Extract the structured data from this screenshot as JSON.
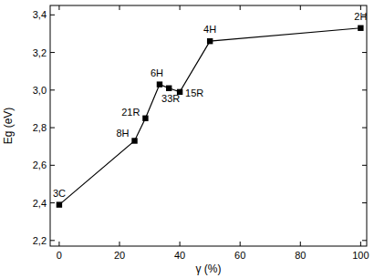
{
  "chart_data": {
    "type": "line",
    "x_label": "γ (%)",
    "y_label": "Eg (eV)",
    "x": [
      0,
      25,
      28.6,
      33.3,
      36.4,
      40,
      50,
      100
    ],
    "values": [
      2.39,
      2.73,
      2.85,
      3.03,
      3.01,
      2.99,
      3.26,
      3.33
    ],
    "point_labels": [
      "3C",
      "8H",
      "21R",
      "6H",
      "33R",
      "15R",
      "4H",
      "2H"
    ],
    "color": "#000000",
    "marker": "square",
    "line_style": "solid",
    "grid": false,
    "xlim": [
      -3,
      102
    ],
    "xticks": [
      0,
      20,
      40,
      60,
      80,
      100
    ],
    "ylim": [
      2.17,
      3.45
    ],
    "yticks": [
      {
        "value": 2.2,
        "label": "2,2"
      },
      {
        "value": 2.4,
        "label": "2,4"
      },
      {
        "value": 2.6,
        "label": "2,6"
      },
      {
        "value": 2.8,
        "label": "2,8"
      },
      {
        "value": 3.0,
        "label": "3,0"
      },
      {
        "value": 3.2,
        "label": "3,2"
      },
      {
        "value": 3.4,
        "label": "3,4"
      }
    ]
  }
}
